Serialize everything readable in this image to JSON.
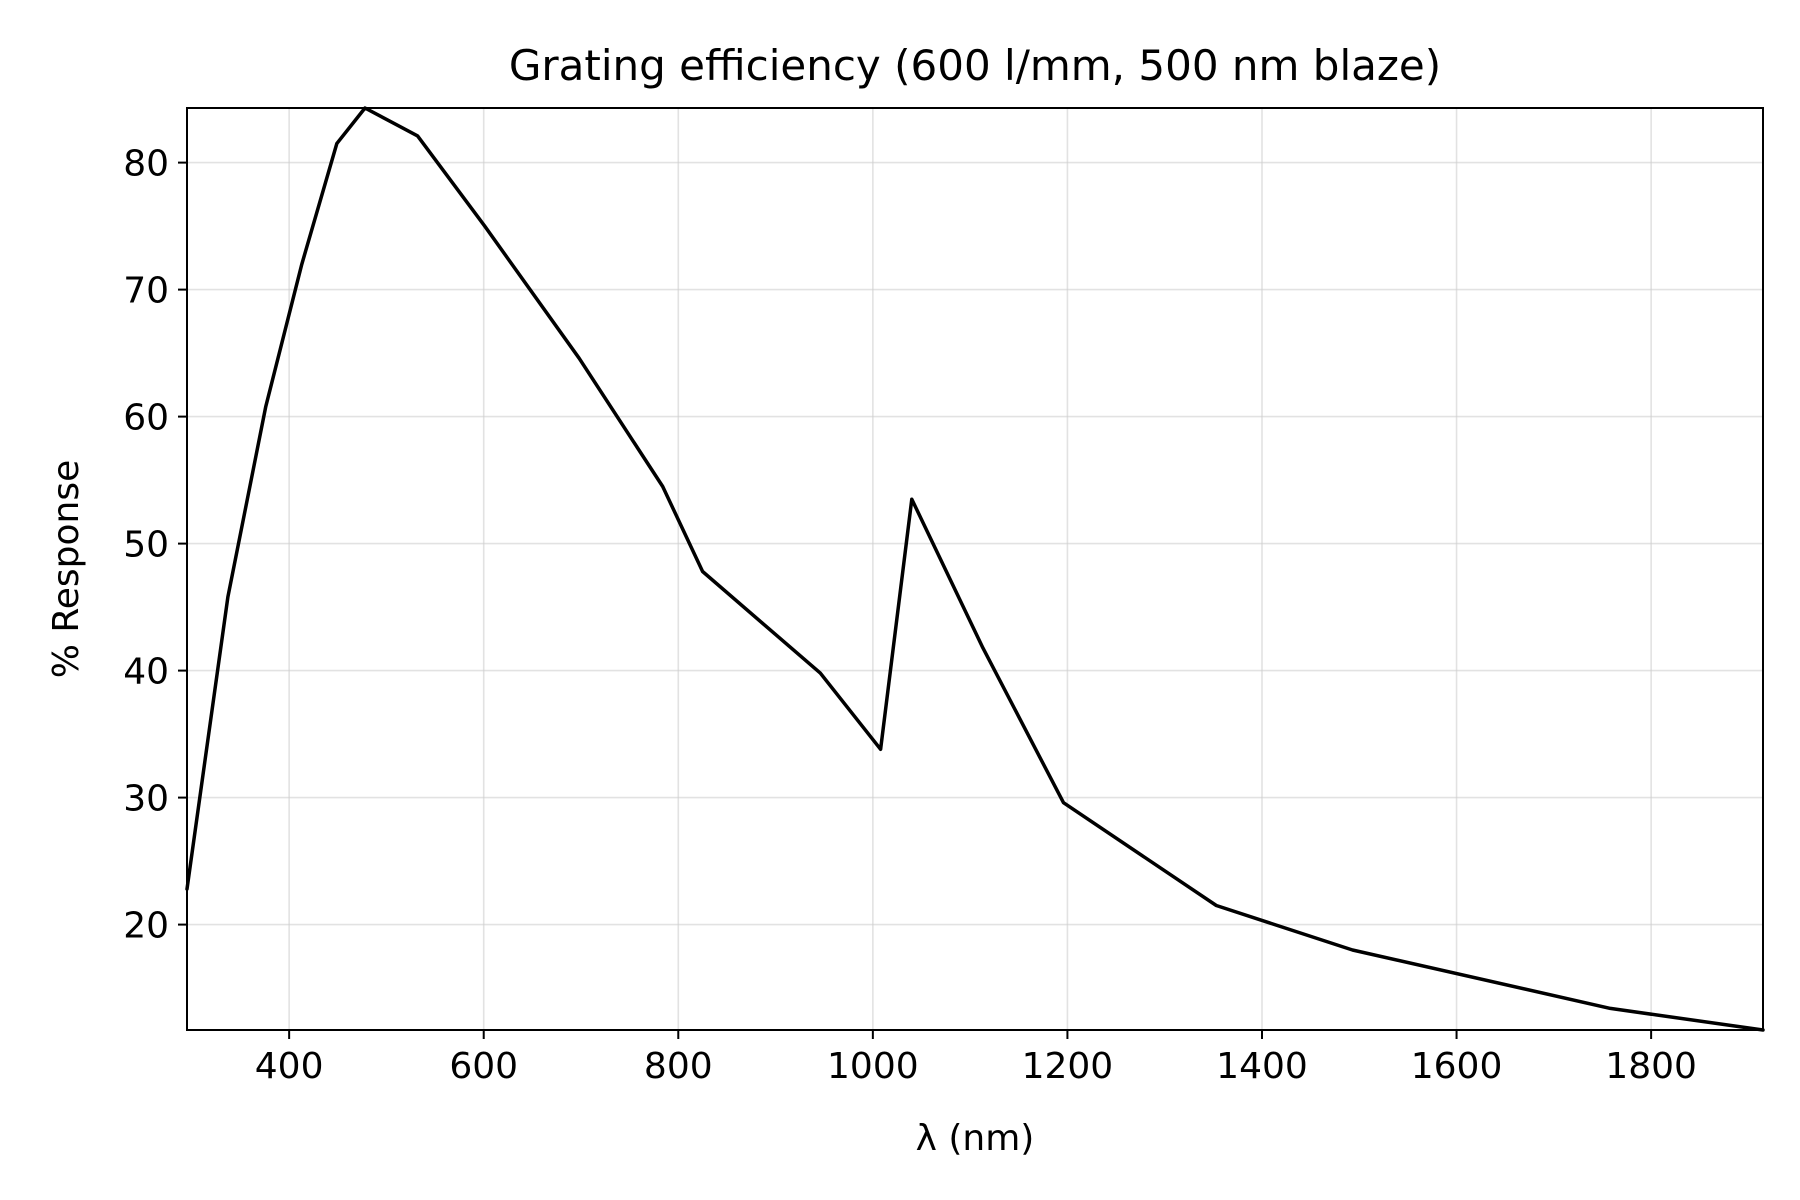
{
  "chart_data": {
    "type": "line",
    "title": "Grating efficiency (600 l/mm, 500 nm blaze)",
    "xlabel": "λ (nm)",
    "ylabel": "% Response",
    "xlim": [
      295,
      1915
    ],
    "ylim": [
      11.7,
      84.3
    ],
    "xticks": [
      400,
      600,
      800,
      1000,
      1200,
      1400,
      1600,
      1800
    ],
    "yticks": [
      20,
      30,
      40,
      50,
      60,
      70,
      80
    ],
    "grid": true,
    "series": [
      {
        "color": "#000000",
        "x": [
          295,
          337,
          376,
          413,
          449,
          478,
          532,
          601,
          698,
          784,
          825,
          946,
          1008,
          1040,
          1113,
          1196,
          1353,
          1493,
          1758,
          1915
        ],
        "y": [
          22.8,
          45.8,
          60.8,
          72.0,
          81.5,
          84.3,
          82.1,
          75.0,
          64.6,
          54.5,
          47.8,
          39.8,
          33.8,
          53.5,
          41.8,
          29.6,
          21.5,
          18.0,
          13.4,
          11.7
        ]
      }
    ]
  }
}
